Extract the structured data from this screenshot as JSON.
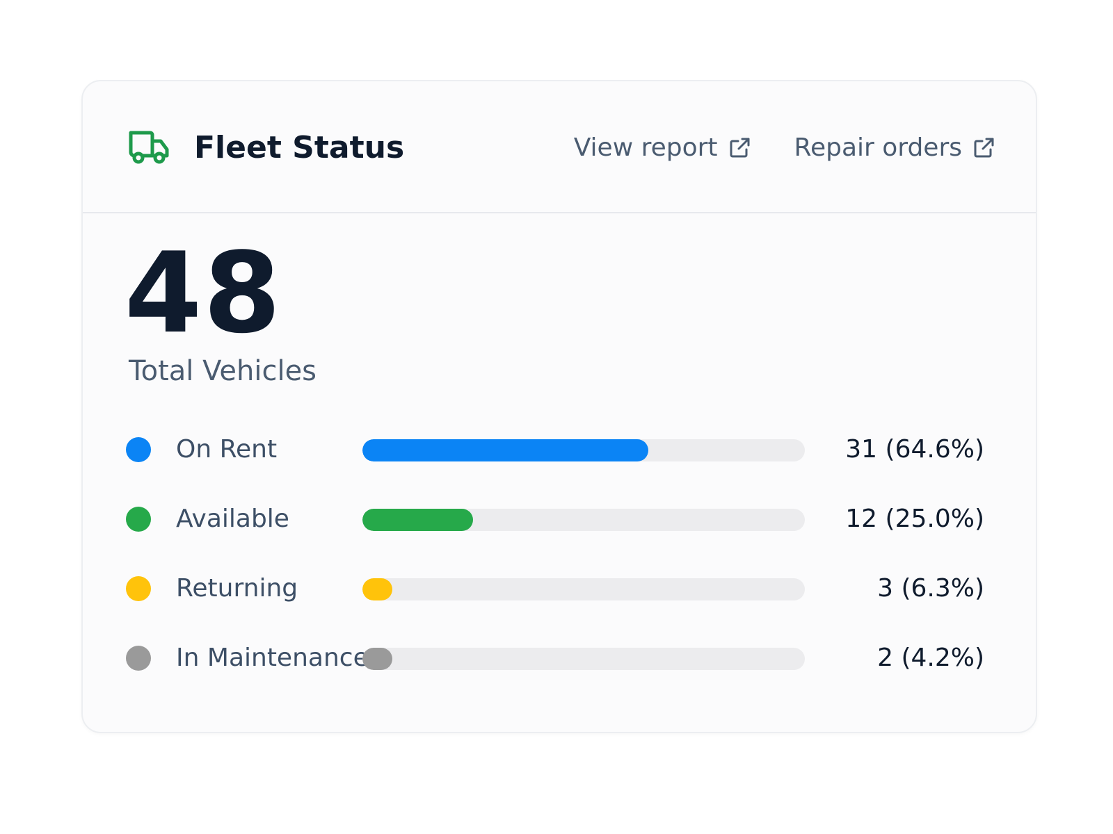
{
  "card": {
    "title": "Fleet Status",
    "icon": "truck-icon",
    "accent_color": "#1e9a4b",
    "links": [
      {
        "label": "View report",
        "icon": "external-link-icon"
      },
      {
        "label": "Repair orders",
        "icon": "external-link-icon"
      }
    ]
  },
  "summary": {
    "total": "48",
    "total_label": "Total Vehicles"
  },
  "statuses": [
    {
      "label": "On Rent",
      "count": 31,
      "percent": 64.6,
      "value_text": "31 (64.6%)",
      "color": "#0b84f5"
    },
    {
      "label": "Available",
      "count": 12,
      "percent": 25.0,
      "value_text": "12 (25.0%)",
      "color": "#26a94a"
    },
    {
      "label": "Returning",
      "count": 3,
      "percent": 6.3,
      "value_text": "3 (6.3%)",
      "color": "#ffc30b"
    },
    {
      "label": "In Maintenance",
      "count": 2,
      "percent": 4.2,
      "value_text": "2 (4.2%)",
      "color": "#9a9a9a"
    }
  ]
}
